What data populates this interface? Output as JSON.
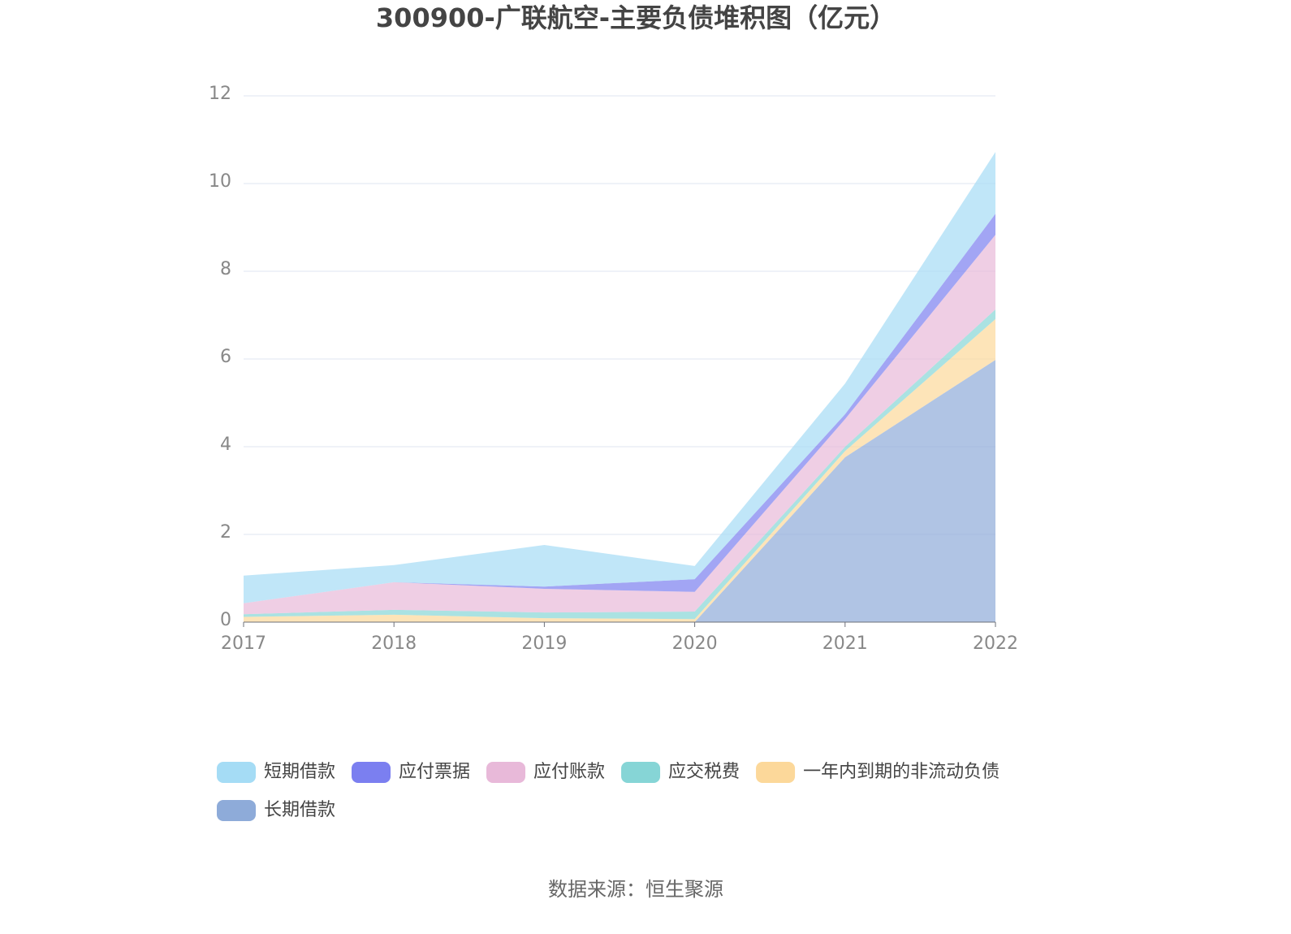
{
  "chart_data": {
    "type": "stacked-area",
    "title": "300900-广联航空-主要负债堆积图（亿元）",
    "categories": [
      "2017",
      "2018",
      "2019",
      "2020",
      "2021",
      "2022"
    ],
    "series": [
      {
        "name": "长期借款",
        "color": "#8eabd9",
        "values": [
          0,
          0,
          0,
          0,
          3.76,
          5.98
        ]
      },
      {
        "name": "一年内到期的非流动负债",
        "color": "#fcd89a",
        "values": [
          0.12,
          0.17,
          0.09,
          0.07,
          0.14,
          0.93
        ]
      },
      {
        "name": "应交税费",
        "color": "#86d5d6",
        "values": [
          0.06,
          0.11,
          0.13,
          0.17,
          0.1,
          0.22
        ]
      },
      {
        "name": "应付账款",
        "color": "#e8b9d9",
        "values": [
          0.25,
          0.63,
          0.54,
          0.45,
          0.63,
          1.7
        ]
      },
      {
        "name": "应付票据",
        "color": "#7b7ff0",
        "values": [
          0,
          0,
          0.05,
          0.29,
          0.11,
          0.48
        ]
      },
      {
        "name": "短期借款",
        "color": "#a5dcf5",
        "values": [
          0.63,
          0.39,
          0.95,
          0.3,
          0.7,
          1.41
        ]
      }
    ],
    "legend_order": [
      5,
      4,
      3,
      2,
      1,
      0
    ],
    "ylim": [
      0,
      12
    ],
    "yticks": [
      0,
      2,
      4,
      6,
      8,
      10,
      12
    ],
    "grid": true,
    "source": "数据来源：恒生聚源"
  }
}
